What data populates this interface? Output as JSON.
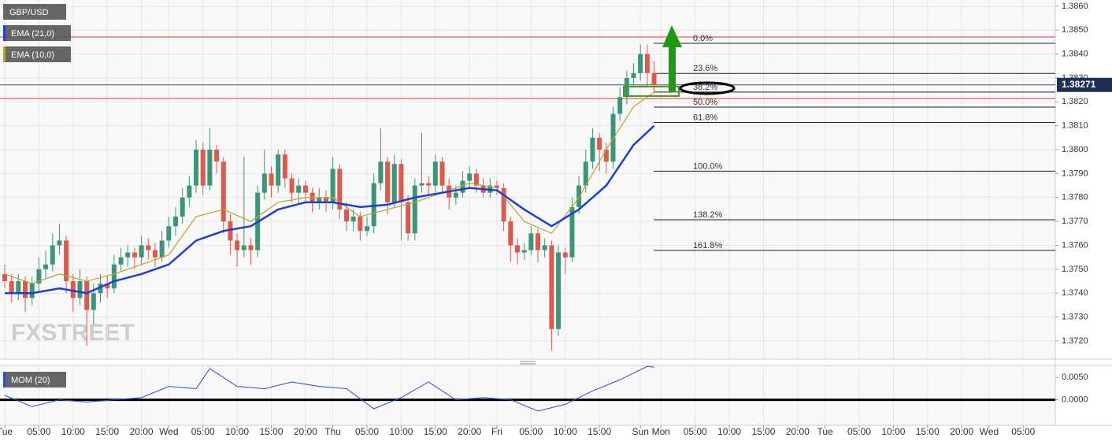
{
  "chart_data": [
    {
      "type": "candlestick",
      "title": "GBP/USD",
      "watermark": "FXSTREET",
      "up_color": "#3a9676",
      "down_color": "#e0584b",
      "candles": [
        [
          1.3748,
          1.3752,
          1.3742,
          1.3745
        ],
        [
          1.3745,
          1.3748,
          1.3736,
          1.374
        ],
        [
          1.374,
          1.3748,
          1.3737,
          1.3745
        ],
        [
          1.3745,
          1.3747,
          1.3732,
          1.3738
        ],
        [
          1.3738,
          1.3747,
          1.3735,
          1.3744
        ],
        [
          1.3744,
          1.3755,
          1.3741,
          1.375
        ],
        [
          1.375,
          1.3758,
          1.3746,
          1.3752
        ],
        [
          1.3752,
          1.3765,
          1.3749,
          1.376
        ],
        [
          1.376,
          1.3769,
          1.3756,
          1.3762
        ],
        [
          1.3762,
          1.3764,
          1.374,
          1.3745
        ],
        [
          1.3745,
          1.3748,
          1.3732,
          1.3738
        ],
        [
          1.3738,
          1.375,
          1.3735,
          1.3745
        ],
        [
          1.3745,
          1.3747,
          1.3718,
          1.3733
        ],
        [
          1.3733,
          1.3744,
          1.3727,
          1.374
        ],
        [
          1.374,
          1.3748,
          1.3736,
          1.3744
        ],
        [
          1.3744,
          1.3747,
          1.3738,
          1.3742
        ],
        [
          1.3742,
          1.3756,
          1.374,
          1.3752
        ],
        [
          1.3752,
          1.3759,
          1.3749,
          1.3755
        ],
        [
          1.3755,
          1.376,
          1.3751,
          1.3757
        ],
        [
          1.3757,
          1.3759,
          1.375,
          1.3755
        ],
        [
          1.3755,
          1.3764,
          1.3752,
          1.376
        ],
        [
          1.376,
          1.3763,
          1.3754,
          1.3758
        ],
        [
          1.3758,
          1.3761,
          1.3751,
          1.3755
        ],
        [
          1.3755,
          1.3766,
          1.3753,
          1.3762
        ],
        [
          1.3762,
          1.3772,
          1.3759,
          1.3768
        ],
        [
          1.3768,
          1.3776,
          1.3764,
          1.3772
        ],
        [
          1.3772,
          1.3784,
          1.3769,
          1.378
        ],
        [
          1.378,
          1.3789,
          1.3776,
          1.3785
        ],
        [
          1.3785,
          1.3804,
          1.3782,
          1.38
        ],
        [
          1.38,
          1.3803,
          1.3781,
          1.3785
        ],
        [
          1.3785,
          1.3809,
          1.3783,
          1.38
        ],
        [
          1.38,
          1.3802,
          1.379,
          1.3795
        ],
        [
          1.3795,
          1.3797,
          1.3765,
          1.377
        ],
        [
          1.377,
          1.3773,
          1.3756,
          1.3762
        ],
        [
          1.3762,
          1.3765,
          1.3751,
          1.3758
        ],
        [
          1.3758,
          1.3797,
          1.3755,
          1.376
        ],
        [
          1.376,
          1.3763,
          1.3752,
          1.3758
        ],
        [
          1.3758,
          1.3785,
          1.3755,
          1.3782
        ],
        [
          1.3782,
          1.38,
          1.3779,
          1.379
        ],
        [
          1.379,
          1.3793,
          1.378,
          1.3785
        ],
        [
          1.3785,
          1.38,
          1.3782,
          1.3798
        ],
        [
          1.3798,
          1.38,
          1.3784,
          1.3788
        ],
        [
          1.3788,
          1.379,
          1.3778,
          1.3782
        ],
        [
          1.3782,
          1.3788,
          1.3777,
          1.3785
        ],
        [
          1.3785,
          1.3787,
          1.3778,
          1.3782
        ],
        [
          1.3782,
          1.3784,
          1.3774,
          1.3778
        ],
        [
          1.3778,
          1.3784,
          1.3775,
          1.378
        ],
        [
          1.378,
          1.3783,
          1.3774,
          1.3778
        ],
        [
          1.3778,
          1.3797,
          1.3775,
          1.3792
        ],
        [
          1.3792,
          1.3794,
          1.3771,
          1.3775
        ],
        [
          1.3775,
          1.3778,
          1.3766,
          1.377
        ],
        [
          1.377,
          1.3775,
          1.3766,
          1.3772
        ],
        [
          1.3772,
          1.3774,
          1.3762,
          1.3766
        ],
        [
          1.3766,
          1.3772,
          1.3764,
          1.3768
        ],
        [
          1.3768,
          1.379,
          1.3765,
          1.3786
        ],
        [
          1.3786,
          1.3809,
          1.3783,
          1.3795
        ],
        [
          1.3795,
          1.3797,
          1.3773,
          1.3778
        ],
        [
          1.3778,
          1.3798,
          1.3776,
          1.3794
        ],
        [
          1.3794,
          1.3796,
          1.3762,
          1.3778
        ],
        [
          1.3778,
          1.3781,
          1.3762,
          1.3765
        ],
        [
          1.3765,
          1.3788,
          1.3762,
          1.3785
        ],
        [
          1.3785,
          1.3807,
          1.3782,
          1.3786
        ],
        [
          1.3786,
          1.3789,
          1.3781,
          1.3785
        ],
        [
          1.3785,
          1.3798,
          1.3782,
          1.3795
        ],
        [
          1.3795,
          1.3797,
          1.3782,
          1.3785
        ],
        [
          1.3785,
          1.3788,
          1.3775,
          1.378
        ],
        [
          1.378,
          1.3785,
          1.3777,
          1.3782
        ],
        [
          1.3782,
          1.3791,
          1.378,
          1.3787
        ],
        [
          1.3787,
          1.3793,
          1.3784,
          1.379
        ],
        [
          1.379,
          1.3792,
          1.3782,
          1.3785
        ],
        [
          1.3785,
          1.3788,
          1.378,
          1.3782
        ],
        [
          1.3782,
          1.3788,
          1.378,
          1.3785
        ],
        [
          1.3785,
          1.3787,
          1.3781,
          1.3784
        ],
        [
          1.3784,
          1.3786,
          1.3766,
          1.377
        ],
        [
          1.377,
          1.3772,
          1.3753,
          1.376
        ],
        [
          1.376,
          1.3763,
          1.3752,
          1.3757
        ],
        [
          1.3757,
          1.3761,
          1.3754,
          1.3758
        ],
        [
          1.3758,
          1.3768,
          1.3756,
          1.3765
        ],
        [
          1.3765,
          1.3767,
          1.3753,
          1.3758
        ],
        [
          1.3758,
          1.3763,
          1.3755,
          1.376
        ],
        [
          1.376,
          1.3762,
          1.3716,
          1.3725
        ],
        [
          1.3725,
          1.376,
          1.3722,
          1.3757
        ],
        [
          1.3757,
          1.3759,
          1.3748,
          1.3755
        ],
        [
          1.3755,
          1.378,
          1.3753,
          1.3776
        ],
        [
          1.3776,
          1.3789,
          1.3773,
          1.3785
        ],
        [
          1.3785,
          1.38,
          1.3782,
          1.3795
        ],
        [
          1.3795,
          1.3809,
          1.3792,
          1.3805
        ],
        [
          1.3805,
          1.3807,
          1.3791,
          1.38
        ],
        [
          1.38,
          1.3803,
          1.379,
          1.3795
        ],
        [
          1.3795,
          1.3818,
          1.3792,
          1.3815
        ],
        [
          1.3815,
          1.3826,
          1.3812,
          1.3822
        ],
        [
          1.3822,
          1.3833,
          1.3819,
          1.383
        ],
        [
          1.383,
          1.3836,
          1.3826,
          1.3832
        ],
        [
          1.3832,
          1.3844,
          1.3829,
          1.384
        ],
        [
          1.384,
          1.3844,
          1.3826,
          1.3832
        ],
        [
          1.3832,
          1.3837,
          1.3824,
          1.3827
        ]
      ],
      "series": [
        {
          "name": "EMA (21,0)",
          "color": "#1f3fd4",
          "x": [
            0,
            4,
            8,
            12,
            16,
            20,
            24,
            28,
            32,
            36,
            40,
            44,
            48,
            52,
            56,
            60,
            64,
            68,
            72,
            76,
            80,
            84,
            88,
            92,
            95
          ],
          "values": [
            1.374,
            1.374,
            1.3742,
            1.374,
            1.3745,
            1.3748,
            1.3752,
            1.3762,
            1.3766,
            1.3768,
            1.3775,
            1.3778,
            1.3778,
            1.3776,
            1.3777,
            1.378,
            1.3782,
            1.3784,
            1.3783,
            1.3775,
            1.3768,
            1.3775,
            1.3785,
            1.3802,
            1.381
          ]
        },
        {
          "name": "EMA (10,0)",
          "color": "#b8a330",
          "x": [
            0,
            4,
            8,
            12,
            16,
            20,
            24,
            28,
            32,
            36,
            40,
            44,
            48,
            52,
            56,
            60,
            64,
            68,
            72,
            76,
            80,
            84,
            88,
            92,
            95
          ],
          "values": [
            1.3748,
            1.3744,
            1.3748,
            1.3745,
            1.3748,
            1.3752,
            1.3756,
            1.3772,
            1.3775,
            1.377,
            1.3778,
            1.378,
            1.378,
            1.3772,
            1.3775,
            1.3778,
            1.3782,
            1.3786,
            1.3784,
            1.377,
            1.3765,
            1.378,
            1.38,
            1.3818,
            1.3824
          ]
        }
      ],
      "fib_levels": [
        {
          "label": "0.0%",
          "value": 1.38445
        },
        {
          "label": "23.6%",
          "value": 1.38319
        },
        {
          "label": "38.2%",
          "value": 1.38241
        },
        {
          "label": "50.0%",
          "value": 1.38178
        },
        {
          "label": "61.8%",
          "value": 1.38114
        },
        {
          "label": "100.0%",
          "value": 1.3791
        },
        {
          "label": "138.2%",
          "value": 1.37707
        },
        {
          "label": "161.8%",
          "value": 1.37579
        }
      ],
      "hlines": [
        1.38471,
        1.38214
      ],
      "hline_color": "#e53935",
      "last_price": {
        "value": 1.38271,
        "label": "1.38271"
      },
      "xlim": [
        -0.69,
        153.69
      ],
      "ylim": [
        1.37124,
        1.38626
      ],
      "grid": true,
      "xticks": [
        {
          "value": 0,
          "label": "Tue"
        },
        {
          "value": 5,
          "label": "05:00"
        },
        {
          "value": 10,
          "label": "10:00"
        },
        {
          "value": 15,
          "label": "15:00"
        },
        {
          "value": 20,
          "label": "20:00"
        },
        {
          "value": 24,
          "label": "Wed"
        },
        {
          "value": 29,
          "label": "05:00"
        },
        {
          "value": 34,
          "label": "10:00"
        },
        {
          "value": 39,
          "label": "15:00"
        },
        {
          "value": 44,
          "label": "20:00"
        },
        {
          "value": 48,
          "label": "Thu"
        },
        {
          "value": 53,
          "label": "05:00"
        },
        {
          "value": 58,
          "label": "10:00"
        },
        {
          "value": 63,
          "label": "15:00"
        },
        {
          "value": 68,
          "label": "20:00"
        },
        {
          "value": 72,
          "label": "Fri"
        },
        {
          "value": 77,
          "label": "05:00"
        },
        {
          "value": 82,
          "label": "10:00"
        },
        {
          "value": 87,
          "label": "15:00"
        },
        {
          "value": 93,
          "label": "Sun"
        },
        {
          "value": 96,
          "label": "Mon"
        },
        {
          "value": 101,
          "label": "05:00"
        },
        {
          "value": 106,
          "label": "10:00"
        },
        {
          "value": 111,
          "label": "15:00"
        },
        {
          "value": 116,
          "label": "20:00"
        },
        {
          "value": 120,
          "label": "Tue"
        },
        {
          "value": 125,
          "label": "05:00"
        },
        {
          "value": 130,
          "label": "10:00"
        },
        {
          "value": 135,
          "label": "15:00"
        },
        {
          "value": 140,
          "label": "20:00"
        },
        {
          "value": 144,
          "label": "Wed"
        },
        {
          "value": 149,
          "label": "05:00"
        }
      ],
      "yticks": [
        {
          "value": 1.372,
          "label": "1.3720"
        },
        {
          "value": 1.373,
          "label": "1.3730"
        },
        {
          "value": 1.374,
          "label": "1.3740"
        },
        {
          "value": 1.375,
          "label": "1.3750"
        },
        {
          "value": 1.376,
          "label": "1.3760"
        },
        {
          "value": 1.377,
          "label": "1.3770"
        },
        {
          "value": 1.378,
          "label": "1.3780"
        },
        {
          "value": 1.379,
          "label": "1.3790"
        },
        {
          "value": 1.38,
          "label": "1.3800"
        },
        {
          "value": 1.381,
          "label": "1.3810"
        },
        {
          "value": 1.382,
          "label": "1.3820"
        },
        {
          "value": 1.383,
          "label": "1.3830"
        },
        {
          "value": 1.384,
          "label": "1.3840"
        },
        {
          "value": 1.385,
          "label": "1.3850"
        },
        {
          "value": 1.386,
          "label": "1.3860"
        }
      ]
    },
    {
      "type": "line",
      "title": "MOM (20)",
      "series": [
        {
          "color": "#2b4de0",
          "x": [
            0,
            4,
            8,
            12,
            16,
            20,
            24,
            28,
            30,
            34,
            38,
            42,
            46,
            50,
            54,
            58,
            62,
            66,
            70,
            74,
            78,
            82,
            86,
            90,
            94,
            95
          ],
          "values": [
            0.001,
            -0.0015,
            0,
            -0.0005,
            0,
            0.0005,
            0.003,
            0.0025,
            0.007,
            0.003,
            0.0025,
            0.004,
            0.003,
            0.0025,
            -0.002,
            0.0005,
            0.004,
            0,
            0.0005,
            0,
            -0.0025,
            -0.001,
            0.002,
            0.0045,
            0.0075,
            0.0073
          ]
        }
      ],
      "hlines": [
        0
      ],
      "hline_color": "#000000",
      "ylim": [
        -0.0057,
        0.0077
      ],
      "yticks": [
        {
          "value": 0.005,
          "label": "0.0050"
        },
        {
          "value": 0,
          "label": "0.0000"
        }
      ]
    }
  ]
}
